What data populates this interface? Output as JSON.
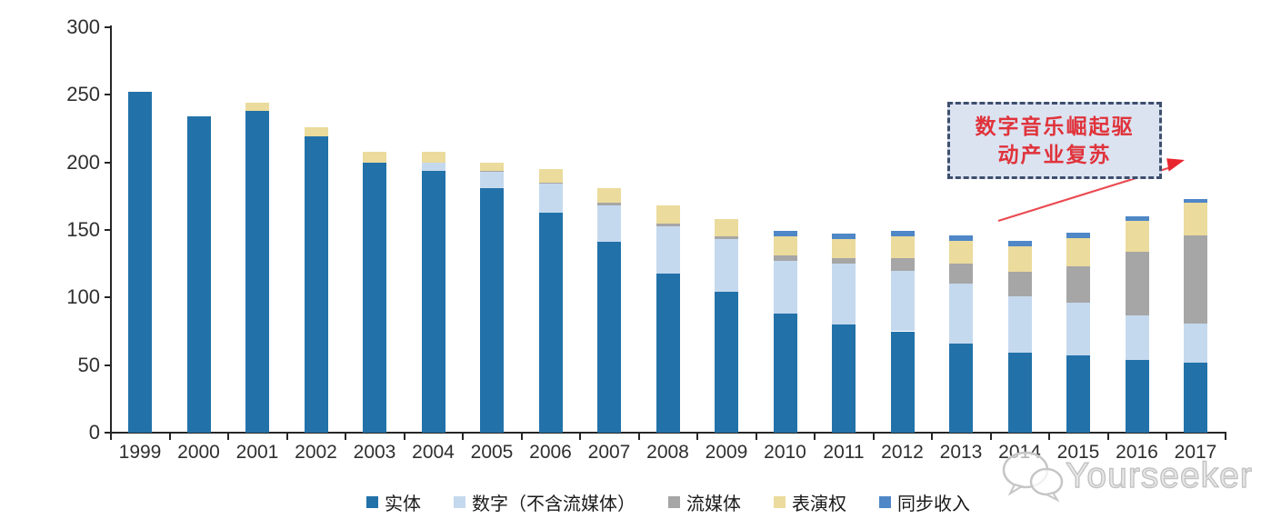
{
  "annotation": {
    "line1": "数字音乐崛起驱",
    "line2": "动产业复苏",
    "text_color": "#e0333b",
    "box_fill": "#dbe3f1",
    "box_border": "#3e4f6e",
    "arrow_color": "#ea4a50"
  },
  "watermark": {
    "text": "Yourseeker",
    "icon": "chat-bubbles-icon"
  },
  "chart_data": {
    "type": "bar",
    "stacked": true,
    "title": "",
    "xlabel": "",
    "ylabel": "",
    "ylim": [
      0,
      300
    ],
    "yticks": [
      0,
      50,
      100,
      150,
      200,
      250,
      300
    ],
    "grid": false,
    "legend_position": "bottom",
    "categories": [
      "1999",
      "2000",
      "2001",
      "2002",
      "2003",
      "2004",
      "2005",
      "2006",
      "2007",
      "2008",
      "2009",
      "2010",
      "2011",
      "2012",
      "2013",
      "2014",
      "2015",
      "2016",
      "2017"
    ],
    "series": [
      {
        "name": "实体",
        "color": "#2272a9",
        "values": [
          252,
          234,
          238,
          219,
          200,
          194,
          181,
          163,
          141,
          118,
          104,
          88,
          80,
          75,
          66,
          59,
          57,
          54,
          52
        ]
      },
      {
        "name": "数字（不含流媒体）",
        "color": "#c5d9ee",
        "values": [
          0,
          0,
          0,
          0,
          0,
          6,
          12,
          21,
          27,
          35,
          39,
          39,
          45,
          45,
          44,
          42,
          39,
          33,
          29
        ]
      },
      {
        "name": "流媒体",
        "color": "#a6a6a6",
        "values": [
          0,
          0,
          0,
          0,
          0,
          0,
          1,
          1,
          2,
          2,
          2,
          4,
          4,
          9,
          15,
          18,
          27,
          47,
          65
        ]
      },
      {
        "name": "表演权",
        "color": "#ebdb9c",
        "values": [
          0,
          0,
          6,
          7,
          8,
          8,
          6,
          10,
          11,
          13,
          13,
          14,
          14,
          16,
          17,
          19,
          21,
          23,
          24
        ]
      },
      {
        "name": "同步收入",
        "color": "#4f87c7",
        "values": [
          0,
          0,
          0,
          0,
          0,
          0,
          0,
          0,
          0,
          0,
          0,
          4,
          4,
          4,
          4,
          4,
          4,
          3,
          3
        ]
      }
    ]
  }
}
